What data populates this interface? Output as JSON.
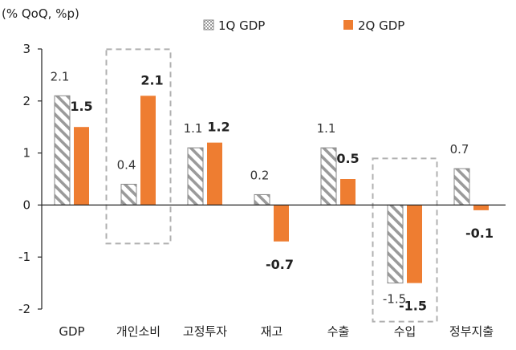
{
  "unit_label": "(% QoQ, %p)",
  "colors": {
    "q1_stroke": "#8a8a8a",
    "q1_hatch": "#9a9a9a",
    "q2_fill": "#ee7d31",
    "highlight_box": "#b0b0b0",
    "axis": "#222222"
  },
  "chart_data": {
    "type": "bar",
    "categories": [
      "GDP",
      "개인소비",
      "고정투자",
      "재고",
      "수출",
      "수입",
      "정부지출"
    ],
    "series": [
      {
        "name": "1Q GDP",
        "values": [
          2.1,
          0.4,
          1.1,
          0.2,
          1.1,
          -1.5,
          0.7
        ],
        "labels": [
          "2.1",
          "0.4",
          "1.1",
          "0.2",
          "1.1",
          "-1.5",
          "0.7"
        ]
      },
      {
        "name": "2Q GDP",
        "values": [
          1.5,
          2.1,
          1.2,
          -0.7,
          0.5,
          -1.5,
          -0.1
        ],
        "labels": [
          "1.5",
          "2.1",
          "1.2",
          "-0.7",
          "0.5",
          "-1.5",
          "-0.1"
        ]
      }
    ],
    "ylim": [
      -2,
      3
    ],
    "yticks": [
      3,
      2,
      1,
      0,
      -1,
      -2
    ],
    "legend": "top",
    "grid": false,
    "highlighted_categories": [
      "개인소비",
      "수입"
    ]
  }
}
